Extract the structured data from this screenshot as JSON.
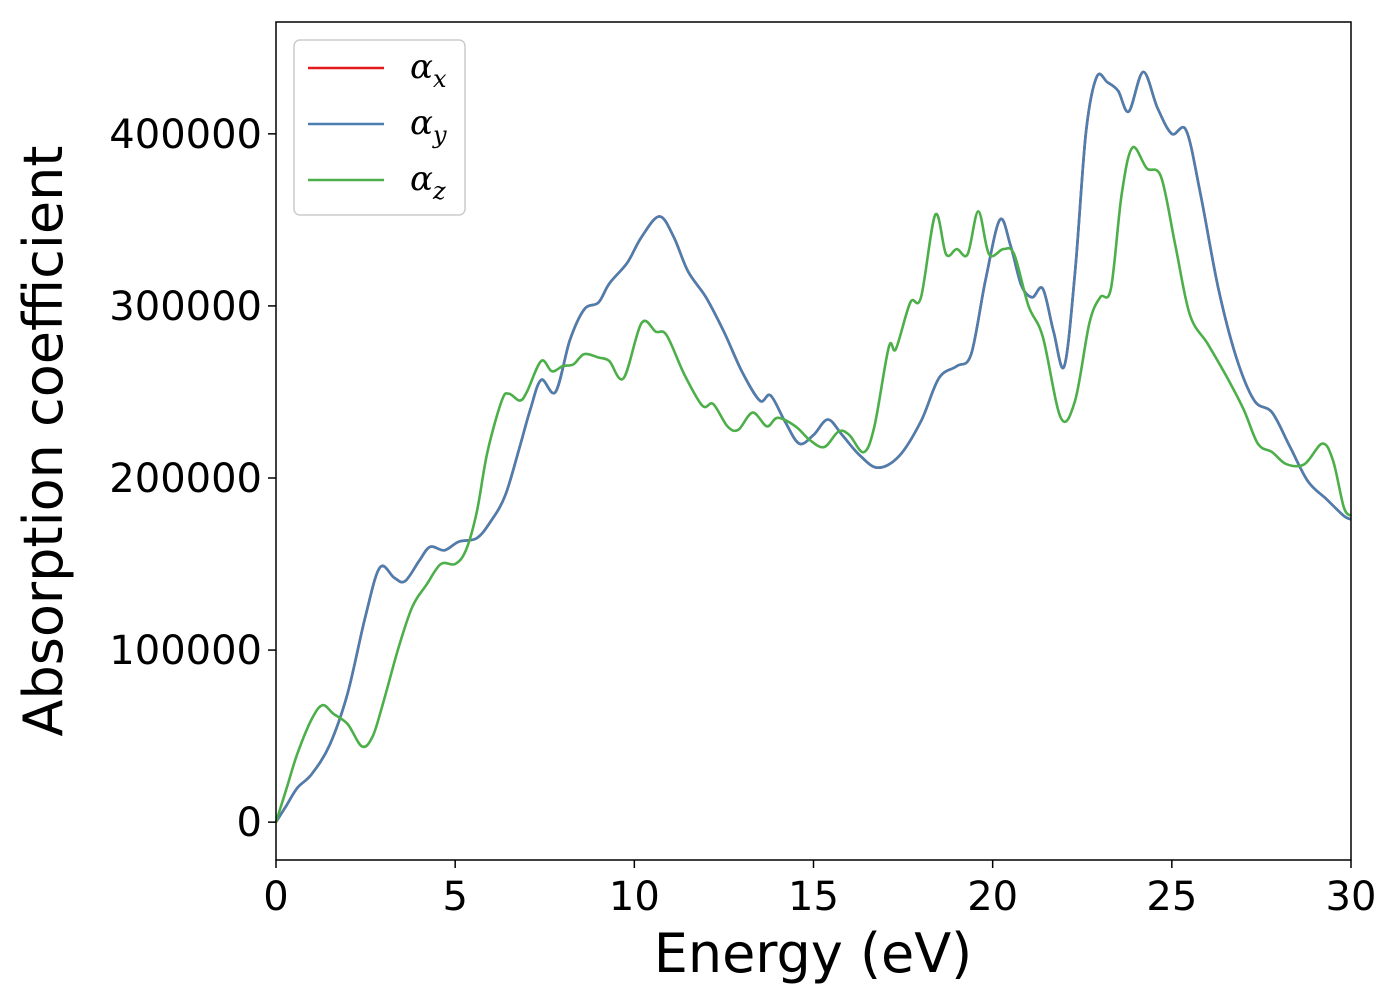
{
  "chart_data": {
    "type": "line",
    "title": "",
    "xlabel": "Energy (eV)",
    "ylabel": "Absorption coefficient",
    "xlim": [
      0,
      30
    ],
    "ylim": [
      -22000,
      465000
    ],
    "xticks": [
      0,
      5,
      10,
      15,
      20,
      25,
      30
    ],
    "yticks": [
      0,
      100000,
      200000,
      300000,
      400000
    ],
    "xtick_labels": [
      "0",
      "5",
      "10",
      "15",
      "20",
      "25",
      "30"
    ],
    "ytick_labels": [
      "0",
      "100000",
      "200000",
      "300000",
      "400000"
    ],
    "grid": false,
    "legend_position": "top-left",
    "series": [
      {
        "name": "αx",
        "symbol": "α",
        "sub": "x",
        "color": "#e41a1c",
        "points": [
          [
            0,
            0
          ],
          [
            0.3,
            10000
          ],
          [
            0.6,
            20000
          ],
          [
            1.0,
            28000
          ],
          [
            1.5,
            45000
          ],
          [
            2.0,
            75000
          ],
          [
            2.5,
            120000
          ],
          [
            2.9,
            148000
          ],
          [
            3.3,
            142000
          ],
          [
            3.6,
            140000
          ],
          [
            4.0,
            152000
          ],
          [
            4.3,
            160000
          ],
          [
            4.7,
            158000
          ],
          [
            5.1,
            163000
          ],
          [
            5.6,
            165000
          ],
          [
            6.0,
            175000
          ],
          [
            6.4,
            190000
          ],
          [
            6.8,
            218000
          ],
          [
            7.1,
            240000
          ],
          [
            7.4,
            257000
          ],
          [
            7.8,
            250000
          ],
          [
            8.2,
            280000
          ],
          [
            8.6,
            298000
          ],
          [
            9.0,
            302000
          ],
          [
            9.3,
            313000
          ],
          [
            9.8,
            325000
          ],
          [
            10.2,
            340000
          ],
          [
            10.7,
            352000
          ],
          [
            11.1,
            340000
          ],
          [
            11.5,
            320000
          ],
          [
            12.0,
            305000
          ],
          [
            12.5,
            285000
          ],
          [
            13.0,
            262000
          ],
          [
            13.5,
            245000
          ],
          [
            13.8,
            248000
          ],
          [
            14.2,
            233000
          ],
          [
            14.6,
            220000
          ],
          [
            15.0,
            225000
          ],
          [
            15.4,
            234000
          ],
          [
            15.8,
            225000
          ],
          [
            16.3,
            213000
          ],
          [
            16.8,
            206000
          ],
          [
            17.4,
            213000
          ],
          [
            18.0,
            233000
          ],
          [
            18.5,
            258000
          ],
          [
            19.0,
            265000
          ],
          [
            19.4,
            272000
          ],
          [
            19.8,
            315000
          ],
          [
            20.2,
            350000
          ],
          [
            20.5,
            335000
          ],
          [
            20.8,
            312000
          ],
          [
            21.1,
            305000
          ],
          [
            21.4,
            310000
          ],
          [
            21.7,
            285000
          ],
          [
            22.0,
            265000
          ],
          [
            22.3,
            320000
          ],
          [
            22.6,
            400000
          ],
          [
            22.9,
            433000
          ],
          [
            23.2,
            430000
          ],
          [
            23.5,
            425000
          ],
          [
            23.8,
            413000
          ],
          [
            24.2,
            436000
          ],
          [
            24.6,
            415000
          ],
          [
            25.0,
            400000
          ],
          [
            25.4,
            402000
          ],
          [
            25.8,
            365000
          ],
          [
            26.3,
            310000
          ],
          [
            26.8,
            270000
          ],
          [
            27.3,
            245000
          ],
          [
            27.8,
            238000
          ],
          [
            28.3,
            218000
          ],
          [
            28.8,
            198000
          ],
          [
            29.3,
            188000
          ],
          [
            29.8,
            178000
          ],
          [
            30.0,
            176000
          ]
        ]
      },
      {
        "name": "αy",
        "symbol": "α",
        "sub": "y",
        "color": "#4a7fb0",
        "points": [
          [
            0,
            0
          ],
          [
            0.3,
            10000
          ],
          [
            0.6,
            20000
          ],
          [
            1.0,
            28000
          ],
          [
            1.5,
            45000
          ],
          [
            2.0,
            75000
          ],
          [
            2.5,
            120000
          ],
          [
            2.9,
            148000
          ],
          [
            3.3,
            142000
          ],
          [
            3.6,
            140000
          ],
          [
            4.0,
            152000
          ],
          [
            4.3,
            160000
          ],
          [
            4.7,
            158000
          ],
          [
            5.1,
            163000
          ],
          [
            5.6,
            165000
          ],
          [
            6.0,
            175000
          ],
          [
            6.4,
            190000
          ],
          [
            6.8,
            218000
          ],
          [
            7.1,
            240000
          ],
          [
            7.4,
            257000
          ],
          [
            7.8,
            250000
          ],
          [
            8.2,
            280000
          ],
          [
            8.6,
            298000
          ],
          [
            9.0,
            302000
          ],
          [
            9.3,
            313000
          ],
          [
            9.8,
            325000
          ],
          [
            10.2,
            340000
          ],
          [
            10.7,
            352000
          ],
          [
            11.1,
            340000
          ],
          [
            11.5,
            320000
          ],
          [
            12.0,
            305000
          ],
          [
            12.5,
            285000
          ],
          [
            13.0,
            262000
          ],
          [
            13.5,
            245000
          ],
          [
            13.8,
            248000
          ],
          [
            14.2,
            233000
          ],
          [
            14.6,
            220000
          ],
          [
            15.0,
            225000
          ],
          [
            15.4,
            234000
          ],
          [
            15.8,
            225000
          ],
          [
            16.3,
            213000
          ],
          [
            16.8,
            206000
          ],
          [
            17.4,
            213000
          ],
          [
            18.0,
            233000
          ],
          [
            18.5,
            258000
          ],
          [
            19.0,
            265000
          ],
          [
            19.4,
            272000
          ],
          [
            19.8,
            315000
          ],
          [
            20.2,
            350000
          ],
          [
            20.5,
            335000
          ],
          [
            20.8,
            312000
          ],
          [
            21.1,
            305000
          ],
          [
            21.4,
            310000
          ],
          [
            21.7,
            285000
          ],
          [
            22.0,
            265000
          ],
          [
            22.3,
            320000
          ],
          [
            22.6,
            400000
          ],
          [
            22.9,
            433000
          ],
          [
            23.2,
            430000
          ],
          [
            23.5,
            425000
          ],
          [
            23.8,
            413000
          ],
          [
            24.2,
            436000
          ],
          [
            24.6,
            415000
          ],
          [
            25.0,
            400000
          ],
          [
            25.4,
            402000
          ],
          [
            25.8,
            365000
          ],
          [
            26.3,
            310000
          ],
          [
            26.8,
            270000
          ],
          [
            27.3,
            245000
          ],
          [
            27.8,
            238000
          ],
          [
            28.3,
            218000
          ],
          [
            28.8,
            198000
          ],
          [
            29.3,
            188000
          ],
          [
            29.8,
            178000
          ],
          [
            30.0,
            176000
          ]
        ]
      },
      {
        "name": "αz",
        "symbol": "α",
        "sub": "z",
        "color": "#4daf4a",
        "points": [
          [
            0,
            0
          ],
          [
            0.3,
            20000
          ],
          [
            0.6,
            40000
          ],
          [
            1.0,
            60000
          ],
          [
            1.3,
            68000
          ],
          [
            1.6,
            63000
          ],
          [
            2.0,
            57000
          ],
          [
            2.4,
            44000
          ],
          [
            2.7,
            50000
          ],
          [
            3.0,
            70000
          ],
          [
            3.4,
            100000
          ],
          [
            3.8,
            125000
          ],
          [
            4.2,
            138000
          ],
          [
            4.6,
            150000
          ],
          [
            5.0,
            150000
          ],
          [
            5.3,
            158000
          ],
          [
            5.6,
            180000
          ],
          [
            5.9,
            215000
          ],
          [
            6.3,
            245000
          ],
          [
            6.5,
            249000
          ],
          [
            6.8,
            245000
          ],
          [
            7.0,
            250000
          ],
          [
            7.4,
            268000
          ],
          [
            7.7,
            262000
          ],
          [
            8.0,
            265000
          ],
          [
            8.3,
            266000
          ],
          [
            8.6,
            272000
          ],
          [
            9.0,
            270000
          ],
          [
            9.3,
            268000
          ],
          [
            9.7,
            258000
          ],
          [
            10.2,
            290000
          ],
          [
            10.6,
            285000
          ],
          [
            10.9,
            283000
          ],
          [
            11.4,
            260000
          ],
          [
            11.9,
            242000
          ],
          [
            12.2,
            243000
          ],
          [
            12.6,
            230000
          ],
          [
            12.9,
            228000
          ],
          [
            13.3,
            238000
          ],
          [
            13.7,
            230000
          ],
          [
            14.0,
            235000
          ],
          [
            14.5,
            230000
          ],
          [
            14.9,
            222000
          ],
          [
            15.3,
            218000
          ],
          [
            15.7,
            227000
          ],
          [
            16.0,
            225000
          ],
          [
            16.4,
            215000
          ],
          [
            16.7,
            230000
          ],
          [
            17.1,
            276000
          ],
          [
            17.3,
            275000
          ],
          [
            17.7,
            302000
          ],
          [
            18.0,
            305000
          ],
          [
            18.4,
            353000
          ],
          [
            18.7,
            330000
          ],
          [
            19.0,
            333000
          ],
          [
            19.3,
            330000
          ],
          [
            19.6,
            355000
          ],
          [
            19.9,
            330000
          ],
          [
            20.3,
            333000
          ],
          [
            20.6,
            330000
          ],
          [
            21.0,
            300000
          ],
          [
            21.4,
            282000
          ],
          [
            21.9,
            235000
          ],
          [
            22.3,
            245000
          ],
          [
            22.7,
            290000
          ],
          [
            23.0,
            305000
          ],
          [
            23.3,
            310000
          ],
          [
            23.6,
            365000
          ],
          [
            23.9,
            392000
          ],
          [
            24.3,
            380000
          ],
          [
            24.7,
            375000
          ],
          [
            25.1,
            335000
          ],
          [
            25.5,
            295000
          ],
          [
            26.0,
            278000
          ],
          [
            26.5,
            260000
          ],
          [
            27.0,
            240000
          ],
          [
            27.4,
            220000
          ],
          [
            27.8,
            215000
          ],
          [
            28.2,
            208000
          ],
          [
            28.7,
            208000
          ],
          [
            29.2,
            220000
          ],
          [
            29.5,
            210000
          ],
          [
            29.8,
            183000
          ],
          [
            30.0,
            178000
          ]
        ]
      }
    ]
  }
}
